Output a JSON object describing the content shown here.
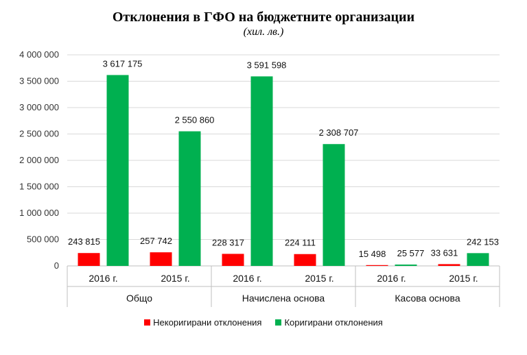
{
  "chart_data": {
    "type": "bar",
    "title": "Отклонения  в ГФО на бюджетните  организации",
    "subtitle": "(хил. лв.)",
    "ylim": [
      0,
      4000000
    ],
    "y_ticks": [
      "0",
      "500 000",
      "1 000 000",
      "1 500 000",
      "2 000 000",
      "2 500 000",
      "3 000 000",
      "3 500 000",
      "4 000 000"
    ],
    "grid": true,
    "legend_position": "bottom",
    "groups": [
      {
        "label": "Общо",
        "categories": [
          "2016 г.",
          "2015 г."
        ]
      },
      {
        "label": "Начислена основа",
        "categories": [
          "2016 г.",
          "2015 г."
        ]
      },
      {
        "label": "Касова основа",
        "categories": [
          "2016 г.",
          "2015 г."
        ]
      }
    ],
    "series": [
      {
        "name": "Некоригирани отклонения",
        "color": "#ff0000",
        "values": [
          243815,
          257742,
          228317,
          224111,
          15498,
          33631
        ],
        "labels": [
          "243 815",
          "257 742",
          "228 317",
          "224 111",
          "15 498",
          "33 631"
        ]
      },
      {
        "name": "Коригирани отклонения",
        "color": "#00b050",
        "values": [
          3617175,
          2550860,
          3591598,
          2308707,
          25577,
          242153
        ],
        "labels": [
          "3 617 175",
          "2 550 860",
          "3 591 598",
          "2 308 707",
          "25 577",
          "242 153"
        ]
      }
    ]
  }
}
